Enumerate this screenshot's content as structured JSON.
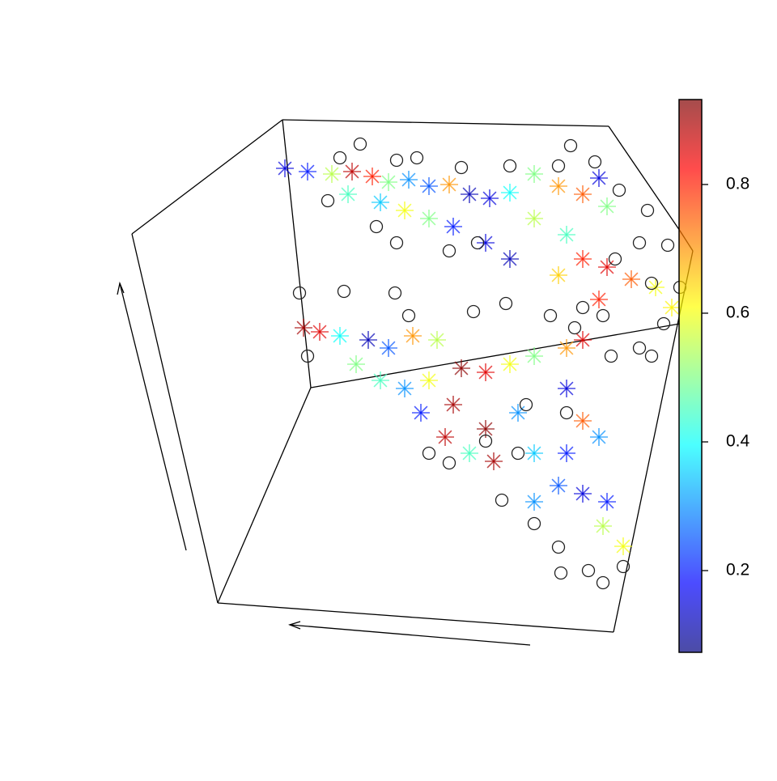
{
  "chart_data": {
    "type": "scatter3d",
    "xlim": [
      150,
      860
    ],
    "ylim": [
      800,
      140
    ],
    "colormap": [
      "#00007F",
      "#0000FF",
      "#007FFF",
      "#00FFFF",
      "#7FFF7F",
      "#FFFF00",
      "#FF7F00",
      "#FF0000",
      "#7F0000"
    ],
    "alpha": 0.7,
    "clim": [
      0.073,
      0.932
    ],
    "cticks": [
      0.2,
      0.4,
      0.6,
      0.8
    ],
    "stars": {
      "x": [
        352,
        380,
        410,
        435,
        460,
        480,
        505,
        530,
        555,
        580,
        605,
        630,
        660,
        690,
        720,
        740,
        750,
        430,
        470,
        500,
        530,
        560,
        600,
        630,
        660,
        700,
        720,
        750,
        780,
        810,
        830,
        690,
        740,
        375,
        395,
        420,
        455,
        480,
        510,
        540,
        570,
        600,
        630,
        660,
        700,
        720,
        440,
        470,
        500,
        530,
        560,
        520,
        550,
        600,
        610,
        640,
        660,
        700,
        720,
        700,
        740,
        690,
        720,
        750,
        745,
        770,
        660,
        580
      ],
      "y": [
        208,
        212,
        215,
        212,
        218,
        225,
        222,
        230,
        228,
        240,
        245,
        238,
        215,
        230,
        240,
        220,
        255,
        240,
        250,
        260,
        270,
        280,
        300,
        320,
        270,
        290,
        320,
        330,
        345,
        355,
        380,
        340,
        370,
        405,
        410,
        415,
        420,
        430,
        415,
        420,
        455,
        460,
        450,
        440,
        430,
        420,
        450,
        470,
        480,
        470,
        500,
        510,
        540,
        530,
        570,
        510,
        560,
        480,
        520,
        560,
        540,
        600,
        610,
        620,
        650,
        675,
        620,
        560
      ],
      "values": [
        0.15,
        0.2,
        0.55,
        0.88,
        0.8,
        0.5,
        0.3,
        0.25,
        0.7,
        0.12,
        0.15,
        0.4,
        0.5,
        0.7,
        0.75,
        0.15,
        0.5,
        0.45,
        0.35,
        0.6,
        0.5,
        0.2,
        0.15,
        0.12,
        0.55,
        0.45,
        0.8,
        0.85,
        0.75,
        0.6,
        0.62,
        0.65,
        0.8,
        0.9,
        0.85,
        0.4,
        0.12,
        0.25,
        0.7,
        0.55,
        0.92,
        0.85,
        0.6,
        0.5,
        0.7,
        0.85,
        0.5,
        0.45,
        0.3,
        0.6,
        0.9,
        0.2,
        0.88,
        0.92,
        0.9,
        0.3,
        0.35,
        0.15,
        0.75,
        0.2,
        0.3,
        0.25,
        0.15,
        0.2,
        0.55,
        0.6,
        0.3,
        0.45
      ]
    },
    "circles": {
      "color": "#222222",
      "x": [
        380,
        445,
        420,
        490,
        515,
        570,
        630,
        690,
        705,
        735,
        765,
        800,
        825,
        805,
        760,
        790,
        720,
        745,
        840,
        820,
        490,
        555,
        590,
        465,
        405,
        370,
        425,
        488,
        505,
        585,
        625,
        680,
        710,
        755,
        790,
        805,
        530,
        555,
        600,
        640,
        620,
        660,
        690,
        693,
        745,
        770,
        727,
        650,
        700
      ],
      "y": [
        440,
        178,
        195,
        198,
        195,
        207,
        205,
        205,
        180,
        200,
        235,
        260,
        303,
        350,
        320,
        300,
        380,
        390,
        355,
        400,
        300,
        310,
        300,
        280,
        248,
        362,
        360,
        362,
        390,
        385,
        375,
        390,
        405,
        440,
        430,
        440,
        560,
        572,
        545,
        560,
        618,
        647,
        676,
        708,
        720,
        700,
        705,
        500,
        510
      ]
    }
  }
}
